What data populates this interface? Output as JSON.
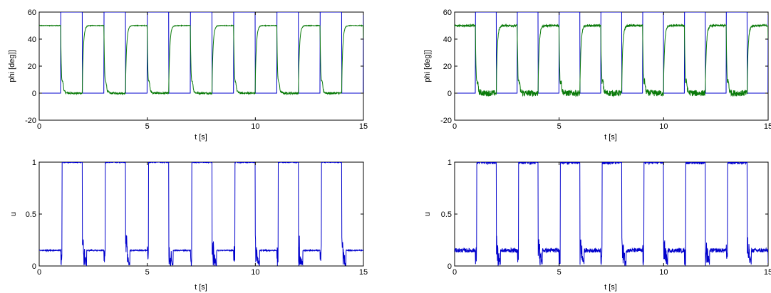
{
  "chart_data": [
    {
      "type": "line",
      "panel": "top-left",
      "xlabel": "t [s]",
      "ylabel": "phi [deg]]",
      "xlim": [
        0,
        15
      ],
      "ylim": [
        -20,
        60
      ],
      "xticks": [
        0,
        5,
        10,
        15
      ],
      "yticks": [
        -20,
        0,
        20,
        40,
        60
      ],
      "grid": false,
      "series": [
        {
          "color": "#0000cc",
          "shape": "square-wave",
          "period": 2,
          "high_value": 60,
          "low_value": 0,
          "first_edge": 1,
          "duty_high_first": true
        },
        {
          "color": "#0a7a0a",
          "shape": "tracking-response",
          "settled_high": 50,
          "settled_low": 0,
          "overshoot_at_fall": -8,
          "noise": 1
        }
      ]
    },
    {
      "type": "line",
      "panel": "top-right",
      "xlabel": "t [s]",
      "ylabel": "phi [deg]]",
      "xlim": [
        0,
        15
      ],
      "ylim": [
        -20,
        60
      ],
      "xticks": [
        0,
        5,
        10,
        15
      ],
      "yticks": [
        -20,
        0,
        20,
        40,
        60
      ],
      "grid": false,
      "series": [
        {
          "color": "#0000cc",
          "shape": "square-wave",
          "period": 2,
          "high_value": 60,
          "low_value": 0,
          "first_edge": 1,
          "duty_high_first": true
        },
        {
          "color": "#0a7a0a",
          "shape": "tracking-response",
          "settled_high": 50,
          "settled_low": 0,
          "overshoot_at_fall": -10,
          "noise": 3
        }
      ]
    },
    {
      "type": "line",
      "panel": "bottom-left",
      "xlabel": "t [s]",
      "ylabel": "u",
      "xlim": [
        0,
        15
      ],
      "ylim": [
        0,
        1
      ],
      "xticks": [
        0,
        5,
        10,
        15
      ],
      "yticks": [
        0,
        0.5,
        1
      ],
      "grid": false,
      "series": [
        {
          "color": "#0000cc",
          "shape": "control-signal",
          "saturated_high": 1,
          "hold_level": 0.15,
          "low_level": 0.0,
          "noise": 0.005
        }
      ]
    },
    {
      "type": "line",
      "panel": "bottom-right",
      "xlabel": "t [s]",
      "ylabel": "u",
      "xlim": [
        0,
        15
      ],
      "ylim": [
        0,
        1
      ],
      "xticks": [
        0,
        5,
        10,
        15
      ],
      "yticks": [
        0,
        0.5,
        1
      ],
      "grid": false,
      "series": [
        {
          "color": "#0000cc",
          "shape": "control-signal",
          "saturated_high": 1,
          "hold_level": 0.15,
          "low_level": 0.01,
          "noise": 0.02
        }
      ]
    }
  ]
}
